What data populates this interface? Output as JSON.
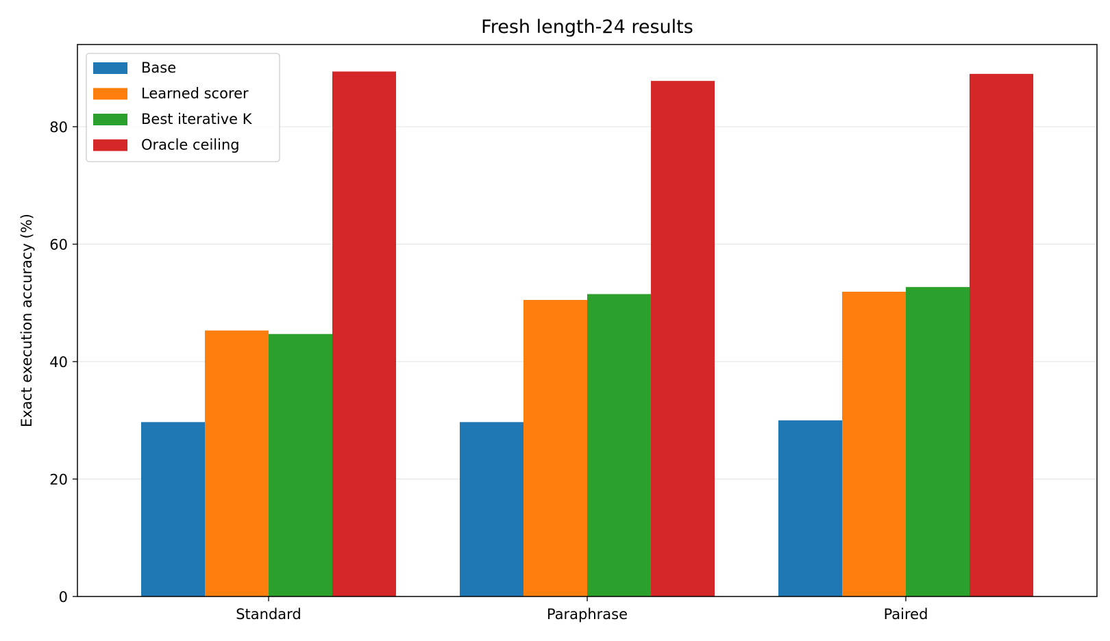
{
  "chart_data": {
    "type": "bar",
    "title": "Fresh length-24 results",
    "xlabel": "",
    "ylabel": "Exact execution accuracy (%)",
    "categories": [
      "Standard",
      "Paraphrase",
      "Paired"
    ],
    "ylim": [
      0,
      94
    ],
    "yticks": [
      0,
      20,
      40,
      60,
      80
    ],
    "grid": "horizontal",
    "legend_position": "top-left",
    "series": [
      {
        "name": "Base",
        "color": "#1f77b4",
        "values": [
          29.7,
          29.7,
          30.0
        ]
      },
      {
        "name": "Learned scorer",
        "color": "#ff7f0e",
        "values": [
          45.3,
          50.5,
          51.9
        ]
      },
      {
        "name": "Best iterative K",
        "color": "#2ca02c",
        "values": [
          44.7,
          51.5,
          52.7
        ]
      },
      {
        "name": "Oracle ceiling",
        "color": "#d62728",
        "values": [
          89.4,
          87.8,
          89.0
        ]
      }
    ]
  }
}
